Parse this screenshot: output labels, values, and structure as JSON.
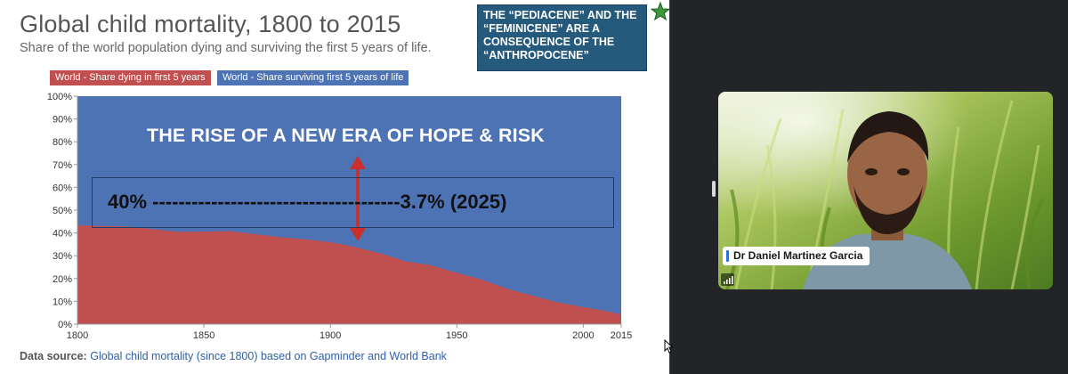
{
  "slide": {
    "title": "Global child mortality, 1800 to 2015",
    "subtitle": "Share of the world population dying and surviving the first 5 years of life.",
    "callout": [
      "THE “PEDIACENE” AND THE",
      "“FEMINICENE” ARE A",
      "CONSEQUENCE OF THE",
      "“ANTHROPOCENE”"
    ],
    "annotation_title": "THE RISE OF A NEW ERA OF HOPE & RISK",
    "annotation_text": "40% --------------------------------------3.7% (2025)",
    "source_label": "Data source:",
    "source_link": "Global child mortality (since 1800) based on Gapminder and World Bank"
  },
  "chart_data": {
    "type": "area",
    "title": "Global child mortality, 1800 to 2015",
    "subtitle": "Share of the world population dying and surviving the first 5 years of life.",
    "xlim": [
      1800,
      2015
    ],
    "ylim": [
      0,
      100
    ],
    "x_ticks": [
      "1800",
      "1850",
      "1900",
      "1950",
      "2000",
      "2015"
    ],
    "y_ticks": [
      "0%",
      "10%",
      "20%",
      "30%",
      "40%",
      "50%",
      "60%",
      "70%",
      "80%",
      "90%",
      "100%"
    ],
    "stacked": true,
    "legend_position": "top-left",
    "x": [
      1800,
      1820,
      1840,
      1860,
      1870,
      1880,
      1890,
      1900,
      1910,
      1920,
      1930,
      1940,
      1950,
      1960,
      1970,
      1980,
      1990,
      2000,
      2010,
      2015
    ],
    "series": [
      {
        "name": "World - Share dying in first 5 years",
        "color": "#c0504f",
        "values": [
          43.3,
          42.8,
          40.5,
          40.8,
          39.5,
          38.2,
          37.2,
          36.0,
          33.8,
          31.0,
          27.5,
          25.8,
          22.5,
          19.5,
          15.5,
          12.5,
          9.5,
          7.5,
          5.5,
          4.3
        ]
      },
      {
        "name": "World - Share surviving first 5 years of life",
        "color": "#4d73b5",
        "values": [
          56.7,
          57.2,
          59.5,
          59.2,
          60.5,
          61.8,
          62.8,
          64.0,
          66.2,
          69.0,
          72.5,
          74.2,
          77.5,
          80.5,
          84.5,
          87.5,
          90.5,
          92.5,
          94.5,
          95.7
        ]
      }
    ]
  },
  "colors": {
    "dying": "#c0504f",
    "surviving": "#4d73b5",
    "callout_bg": "#265a7c",
    "arrow": "#c9302c",
    "star": "#3c9a3c"
  },
  "video": {
    "participant_name": "Dr Daniel Martinez Garcia"
  }
}
